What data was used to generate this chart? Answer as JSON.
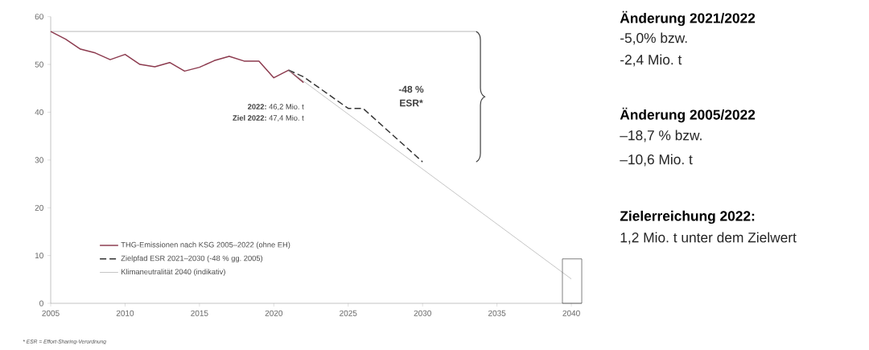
{
  "chart_data": {
    "type": "line",
    "series": [
      {
        "name": "THG-Emissionen nach KSG 2005–2022 (ohne EH)",
        "color": "#8c3a4e",
        "line_style": "solid",
        "x": [
          2005,
          2006,
          2007,
          2008,
          2009,
          2010,
          2011,
          2012,
          2013,
          2014,
          2015,
          2016,
          2017,
          2018,
          2019,
          2020,
          2021,
          2022
        ],
        "values": [
          56.9,
          55.3,
          53.2,
          52.4,
          51.0,
          52.1,
          50.0,
          49.5,
          50.4,
          48.6,
          49.4,
          50.8,
          51.7,
          50.7,
          50.7,
          47.2,
          48.8,
          46.2
        ]
      },
      {
        "name": "Zielpfad ESR 2021–2030 (-48 % gg. 2005)",
        "color": "#333333",
        "line_style": "dashed",
        "x": [
          2021,
          2022,
          2025,
          2026,
          2030
        ],
        "values": [
          48.8,
          47.4,
          40.8,
          40.8,
          29.6
        ]
      },
      {
        "name": "Klimaneutralität 2040 (indikativ)",
        "color": "#a8a8a8",
        "line_style": "solid",
        "x": [
          2021,
          2040
        ],
        "values": [
          48.8,
          5.1
        ]
      }
    ],
    "xlim": [
      2005,
      2040.7
    ],
    "ylim": [
      0,
      60
    ],
    "xticks": [
      2005,
      2010,
      2015,
      2020,
      2025,
      2030,
      2035,
      2040
    ],
    "yticks": [
      0,
      10,
      20,
      30,
      40,
      50,
      60
    ],
    "legend": "bottom left",
    "ref_lines": [
      {
        "axis": "y",
        "value": 56.9,
        "color": "#a8a8a8"
      }
    ],
    "annotations": [
      "**2022:** 46,2 Mio. t",
      "**Ziel 2022:** 47,4 Mio. t",
      "-48 %",
      "ESR*",
      "* ESR = Effort-Sharing-Verordnung",
      "Änderung 2021/2022",
      "-5,0%  bzw.",
      "-2,4 Mio. t",
      "Änderung 2005/2022",
      "–18,7 %  bzw.",
      "–10,6 Mio. t",
      "Zielerreichung 2022:",
      "1,2 Mio. t unter dem Zielwert"
    ]
  }
}
